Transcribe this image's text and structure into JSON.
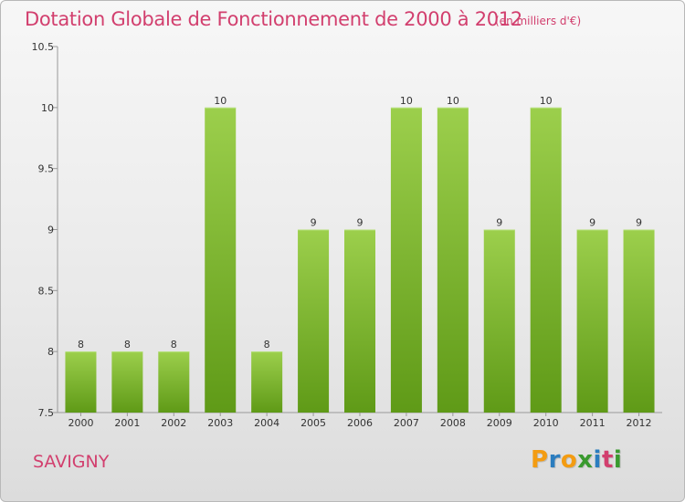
{
  "header": {
    "title": "Dotation Globale de Fonctionnement de 2000 à 2012",
    "subtitle": "(en milliers d'€)"
  },
  "footer": {
    "town": "SAVIGNY",
    "logo_letters": [
      "P",
      "r",
      "o",
      "x",
      "i",
      "t",
      "i"
    ]
  },
  "colors": {
    "title": "#d23f6e",
    "bar_top": "#9ccf4c",
    "bar_bottom": "#5f9a17",
    "logo": [
      "#f39c12",
      "#2b7dbf",
      "#f39c12",
      "#3a9a2f",
      "#2b7dbf",
      "#d23f6e",
      "#3a9a2f"
    ]
  },
  "chart_data": {
    "type": "bar",
    "categories": [
      "2000",
      "2001",
      "2002",
      "2003",
      "2004",
      "2005",
      "2006",
      "2007",
      "2008",
      "2009",
      "2010",
      "2011",
      "2012"
    ],
    "values": [
      8,
      8,
      8,
      10,
      8,
      9,
      9,
      10,
      10,
      9,
      10,
      9,
      9
    ],
    "y_ticks": [
      "7.5",
      "8",
      "8.5",
      "9",
      "9.5",
      "10",
      "10.5"
    ],
    "ylim": [
      7.5,
      10.5
    ],
    "grid": false,
    "legend": "none"
  }
}
